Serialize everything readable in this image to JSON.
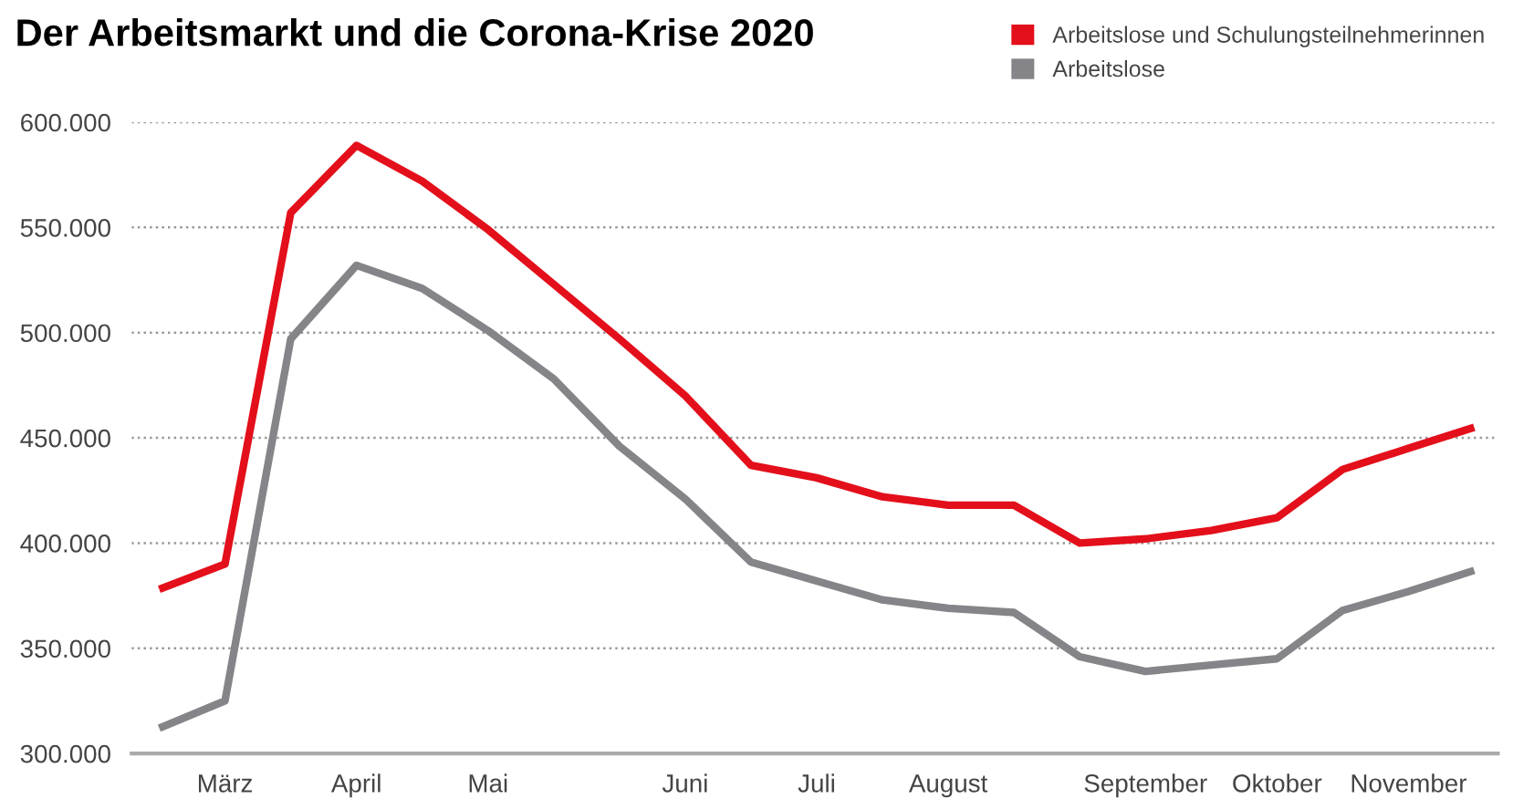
{
  "chart_data": {
    "type": "line",
    "title": "Der Arbeitsmarkt und die Corona-Krise 2020",
    "categories": [
      null,
      "März",
      null,
      "April",
      null,
      "Mai",
      null,
      null,
      "Juni",
      null,
      "Juli",
      null,
      "August",
      null,
      null,
      "September",
      null,
      "Oktober",
      null,
      "November",
      null
    ],
    "series": [
      {
        "name": "Arbeitslose und Schulungsteilnehmerinnen",
        "color": "#e30f1b",
        "values": [
          378000,
          390000,
          557000,
          589000,
          572000,
          549000,
          523000,
          497000,
          470000,
          437000,
          431000,
          422000,
          418000,
          418000,
          400000,
          402000,
          406000,
          412000,
          435000,
          445000,
          455000
        ]
      },
      {
        "name": "Arbeitslose",
        "color": "#858589",
        "values": [
          312000,
          325000,
          497000,
          532000,
          521000,
          501000,
          478000,
          446000,
          421000,
          391000,
          382000,
          373000,
          369000,
          367000,
          346000,
          339000,
          342000,
          345000,
          368000,
          377000,
          387000
        ]
      }
    ],
    "ylim": [
      300000,
      600000
    ],
    "yticks": [
      {
        "value": 300000,
        "label": "300.000"
      },
      {
        "value": 350000,
        "label": "350.000"
      },
      {
        "value": 400000,
        "label": "400.000"
      },
      {
        "value": 450000,
        "label": "450.000"
      },
      {
        "value": 500000,
        "label": "500.000"
      },
      {
        "value": 550000,
        "label": "550.000"
      },
      {
        "value": 600000,
        "label": "600.000"
      }
    ],
    "grid": "y",
    "legend": "top right",
    "marker": "none",
    "line_style": "solid"
  }
}
